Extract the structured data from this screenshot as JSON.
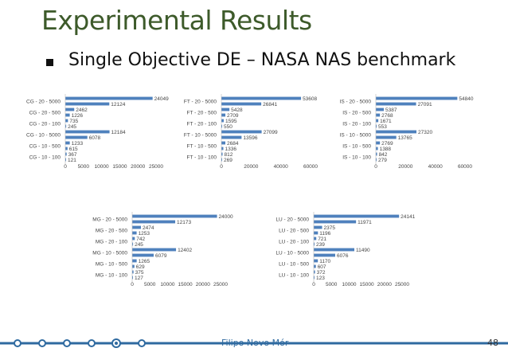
{
  "slide": {
    "title": "Experimental Results",
    "bullet": "Single Objective DE – NASA NAS benchmark",
    "footer_name": "Filipo Novo Mór",
    "page_number": "48",
    "bullet_icon": "square-bullet",
    "accent_color": "#3d5a2a",
    "bar_color": "#4f81bd"
  },
  "chart_data": [
    {
      "type": "bar",
      "orientation": "horizontal",
      "categories": [
        "CG - 20 - 5000",
        "CG - 20 - 500",
        "CG - 20 - 100",
        "CG - 10 - 5000",
        "CG - 10 - 500",
        "CG - 10 - 100"
      ],
      "bars_per_category": [
        [
          24049,
          12124
        ],
        [
          2462,
          1226
        ],
        [
          735,
          245
        ],
        [
          12184,
          6078
        ],
        [
          1233,
          615
        ],
        [
          367,
          121
        ]
      ],
      "xlim": [
        0,
        25000
      ],
      "xticks": [
        "0",
        "5000",
        "10000",
        "15000",
        "20000",
        "25000"
      ]
    },
    {
      "type": "bar",
      "orientation": "horizontal",
      "categories": [
        "FT - 20 - 5000",
        "FT - 20 - 500",
        "FT - 20 - 100",
        "FT - 10 - 5000",
        "FT - 10 - 500",
        "FT - 10 - 100"
      ],
      "bars_per_category": [
        [
          53608,
          26841
        ],
        [
          5428,
          2709
        ],
        [
          1595,
          550
        ],
        [
          27099,
          13596
        ],
        [
          2684,
          1336
        ],
        [
          812,
          269
        ]
      ],
      "xlim": [
        0,
        60000
      ],
      "xticks": [
        "0",
        "20000",
        "40000",
        "60000"
      ]
    },
    {
      "type": "bar",
      "orientation": "horizontal",
      "categories": [
        "IS - 20 - 5000",
        "IS - 20 - 500",
        "IS - 20 - 100",
        "IS - 10 - 5000",
        "IS - 10 - 500",
        "IS - 10 - 100"
      ],
      "bars_per_category": [
        [
          54840,
          27091
        ],
        [
          5387,
          2768
        ],
        [
          1671,
          553
        ],
        [
          27320,
          13765
        ],
        [
          2769,
          1388
        ],
        [
          842,
          279
        ]
      ],
      "xlim": [
        0,
        60000
      ],
      "xticks": [
        "0",
        "20000",
        "40000",
        "60000"
      ]
    },
    {
      "type": "bar",
      "orientation": "horizontal",
      "categories": [
        "MG - 20 - 5000",
        "MG - 20 - 500",
        "MG - 20 - 100",
        "MG - 10 - 5000",
        "MG - 10 - 500",
        "MG - 10 - 100"
      ],
      "bars_per_category": [
        [
          24000,
          12173
        ],
        [
          2474,
          1253
        ],
        [
          742,
          245
        ],
        [
          12402,
          6079
        ],
        [
          1265,
          629
        ],
        [
          375,
          127
        ]
      ],
      "xlim": [
        0,
        25000
      ],
      "xticks": [
        "0",
        "5000",
        "10000",
        "15000",
        "20000",
        "25000"
      ]
    },
    {
      "type": "bar",
      "orientation": "horizontal",
      "categories": [
        "LU - 20 - 5000",
        "LU - 20 - 500",
        "LU - 20 - 100",
        "LU - 10 - 5000",
        "LU - 10 - 500",
        "LU - 10 - 100"
      ],
      "bars_per_category": [
        [
          24141,
          11971
        ],
        [
          2375,
          1196
        ],
        [
          721,
          239
        ],
        [
          11490,
          6076
        ],
        [
          1170,
          607
        ],
        [
          372,
          123
        ]
      ],
      "xlim": [
        0,
        25000
      ],
      "xticks": [
        "0",
        "5000",
        "10000",
        "15000",
        "20000",
        "25000"
      ]
    }
  ]
}
